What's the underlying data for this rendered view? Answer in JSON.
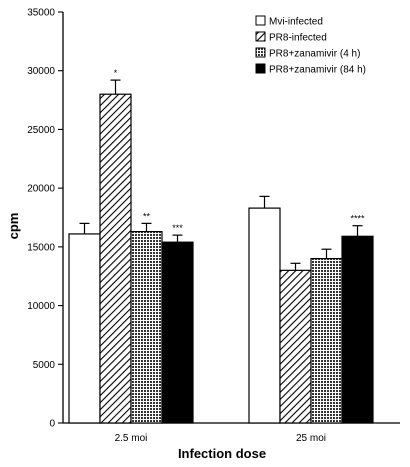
{
  "chart_data": {
    "type": "bar",
    "title": "",
    "xlabel": "Infection dose",
    "ylabel": "cpm",
    "ylim": [
      0,
      35000
    ],
    "yticks": [
      0,
      5000,
      10000,
      15000,
      20000,
      25000,
      30000,
      35000
    ],
    "categories": [
      "2.5 moi",
      "25 moi"
    ],
    "legend_position": "top-right",
    "series": [
      {
        "name": "Mvi-infected",
        "pattern": "open",
        "color": "#ffffff",
        "values": [
          16100,
          18300
        ],
        "errors": [
          900,
          1000
        ],
        "labels": [
          "",
          ""
        ]
      },
      {
        "name": "PR8-infected",
        "pattern": "diagonal-hatch",
        "color": "#000000",
        "values": [
          28000,
          13000
        ],
        "errors": [
          1200,
          600
        ],
        "labels": [
          "*",
          ""
        ]
      },
      {
        "name": "PR8+zanamivir (4 h)",
        "pattern": "crosshatch",
        "color": "#444444",
        "values": [
          16300,
          14000
        ],
        "errors": [
          700,
          800
        ],
        "labels": [
          "**",
          ""
        ]
      },
      {
        "name": "PR8+zanamivir (84 h)",
        "pattern": "solid",
        "color": "#000000",
        "values": [
          15400,
          15900
        ],
        "errors": [
          600,
          900
        ],
        "labels": [
          "***",
          "****"
        ]
      }
    ]
  }
}
